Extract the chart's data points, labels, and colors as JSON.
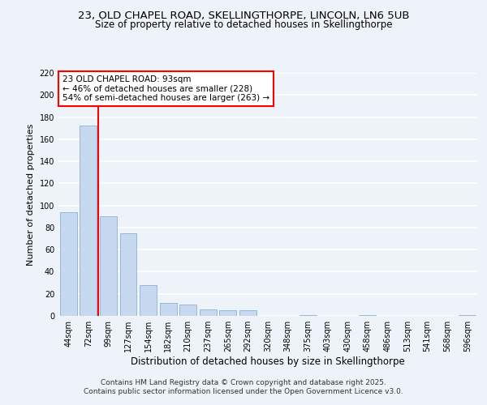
{
  "title1": "23, OLD CHAPEL ROAD, SKELLINGTHORPE, LINCOLN, LN6 5UB",
  "title2": "Size of property relative to detached houses in Skellingthorpe",
  "xlabel": "Distribution of detached houses by size in Skellingthorpe",
  "ylabel": "Number of detached properties",
  "footer1": "Contains HM Land Registry data © Crown copyright and database right 2025.",
  "footer2": "Contains public sector information licensed under the Open Government Licence v3.0.",
  "annotation_line1": "23 OLD CHAPEL ROAD: 93sqm",
  "annotation_line2": "← 46% of detached houses are smaller (228)",
  "annotation_line3": "54% of semi-detached houses are larger (263) →",
  "bar_labels": [
    "44sqm",
    "72sqm",
    "99sqm",
    "127sqm",
    "154sqm",
    "182sqm",
    "210sqm",
    "237sqm",
    "265sqm",
    "292sqm",
    "320sqm",
    "348sqm",
    "375sqm",
    "403sqm",
    "430sqm",
    "458sqm",
    "486sqm",
    "513sqm",
    "541sqm",
    "568sqm",
    "596sqm"
  ],
  "bar_values": [
    94,
    172,
    90,
    75,
    28,
    12,
    10,
    6,
    5,
    5,
    0,
    0,
    1,
    0,
    0,
    1,
    0,
    0,
    0,
    0,
    1
  ],
  "bar_color": "#c6d9f0",
  "bar_edge_color": "#7da6cc",
  "reference_line_x": 2,
  "reference_line_color": "red",
  "ylim": [
    0,
    220
  ],
  "yticks": [
    0,
    20,
    40,
    60,
    80,
    100,
    120,
    140,
    160,
    180,
    200,
    220
  ],
  "background_color": "#eef2f9",
  "grid_color": "#ffffff",
  "title1_fontsize": 9.5,
  "title2_fontsize": 8.5,
  "xlabel_fontsize": 8.5,
  "ylabel_fontsize": 8.0,
  "tick_fontsize": 7.0,
  "annotation_fontsize": 7.5,
  "footer_fontsize": 6.5
}
